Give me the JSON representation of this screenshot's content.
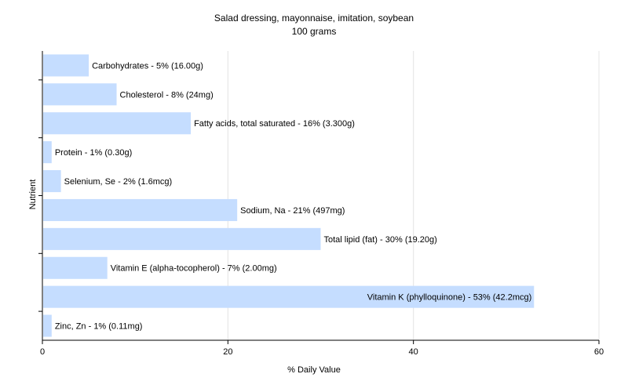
{
  "chart_data": {
    "type": "bar",
    "orientation": "horizontal",
    "title": "Salad dressing, mayonnaise, imitation, soybean",
    "subtitle": "100 grams",
    "xlabel": "% Daily Value",
    "ylabel": "Nutrient",
    "xlim": [
      0,
      60
    ],
    "xticks": [
      0,
      20,
      40,
      60
    ],
    "grid": "vertical",
    "bar_color": "#c5ddff",
    "categories": [
      "Carbohydrates",
      "Cholesterol",
      "Fatty acids, total saturated",
      "Protein",
      "Selenium, Se",
      "Sodium, Na",
      "Total lipid (fat)",
      "Vitamin E (alpha-tocopherol)",
      "Vitamin K (phylloquinone)",
      "Zinc, Zn"
    ],
    "values": [
      5,
      8,
      16,
      1,
      2,
      21,
      30,
      7,
      53,
      1
    ],
    "labels": [
      "Carbohydrates - 5% (16.00g)",
      "Cholesterol - 8% (24mg)",
      "Fatty acids, total saturated - 16% (3.300g)",
      "Protein - 1% (0.30g)",
      "Selenium, Se - 2% (1.6mcg)",
      "Sodium, Na - 21% (497mg)",
      "Total lipid (fat) - 30% (19.20g)",
      "Vitamin E (alpha-tocopherol) - 7% (2.00mg)",
      "Vitamin K (phylloquinone) - 53% (42.2mcg)",
      "Zinc, Zn - 1% (0.11mg)"
    ]
  }
}
